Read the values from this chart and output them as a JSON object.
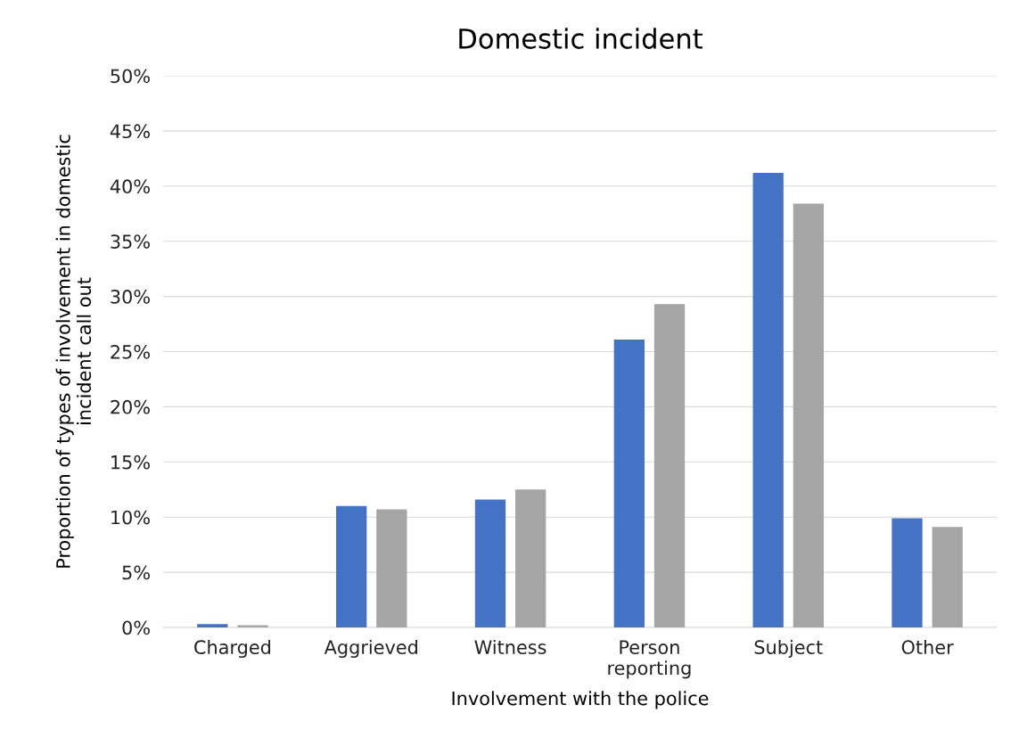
{
  "chart_data": {
    "type": "bar",
    "title": "Domestic incident",
    "xlabel": "Involvement with the police",
    "ylabel": "Proportion of types of involvement in domestic\nincident call out",
    "categories": [
      "Charged",
      "Aggrieved",
      "Witness",
      "Person\nreporting",
      "Subject",
      "Other"
    ],
    "series": [
      {
        "color": "#4472c4",
        "values": [
          0.3,
          11.0,
          11.6,
          26.1,
          41.2,
          9.9
        ]
      },
      {
        "color": "#a5a5a5",
        "values": [
          0.2,
          10.7,
          12.5,
          29.3,
          38.4,
          9.1
        ]
      }
    ],
    "ylim": [
      0,
      50
    ],
    "yticks": [
      {
        "value": 0,
        "label": "0%"
      },
      {
        "value": 5,
        "label": "5%"
      },
      {
        "value": 10,
        "label": "10%"
      },
      {
        "value": 15,
        "label": "15%"
      },
      {
        "value": 20,
        "label": "20%"
      },
      {
        "value": 25,
        "label": "25%"
      },
      {
        "value": 30,
        "label": "30%"
      },
      {
        "value": 35,
        "label": "35%"
      },
      {
        "value": 40,
        "label": "40%"
      },
      {
        "value": 45,
        "label": "45%"
      },
      {
        "value": 50,
        "label": "50%"
      }
    ],
    "grid": "y",
    "legend": false
  }
}
